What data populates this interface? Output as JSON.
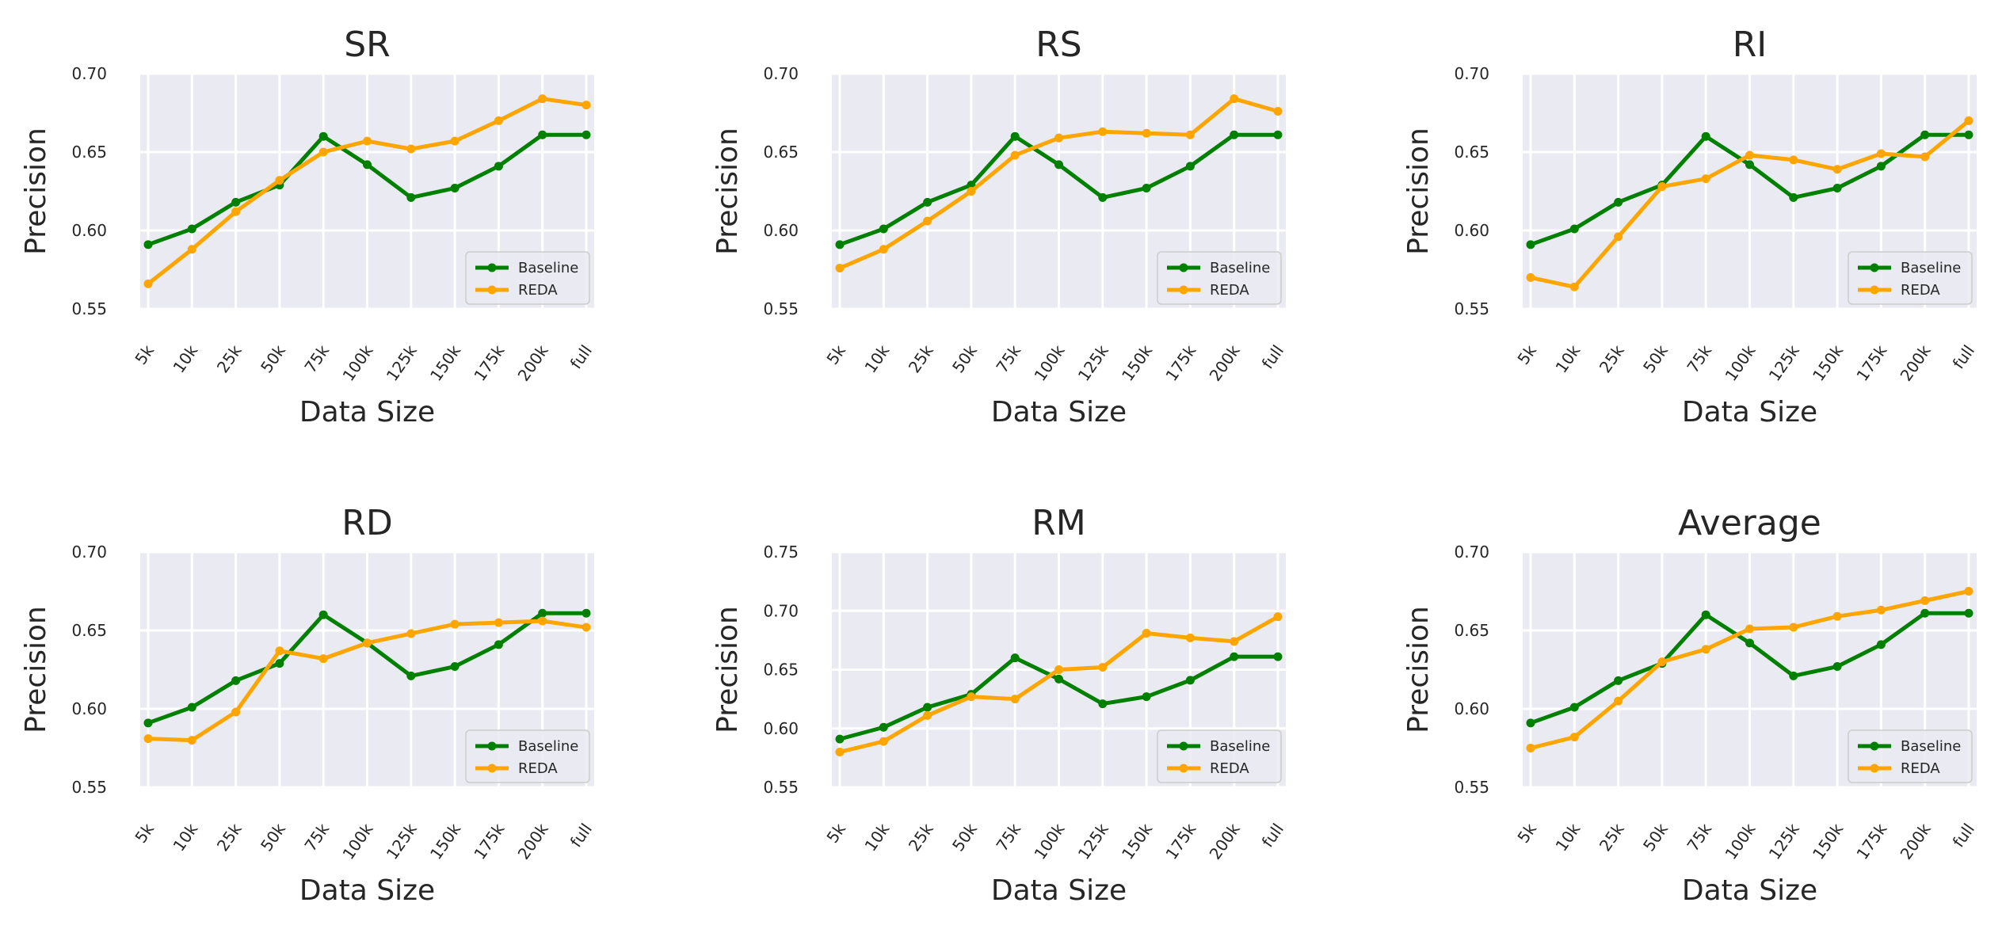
{
  "chart_data": [
    {
      "type": "line",
      "title": "SR",
      "xlabel": "Data Size",
      "ylabel": "Precision",
      "categories": [
        "5k",
        "10k",
        "25k",
        "50k",
        "75k",
        "100k",
        "125k",
        "150k",
        "175k",
        "200k",
        "full"
      ],
      "ylim": [
        0.55,
        0.7
      ],
      "yticks": [
        "0.55",
        "0.60",
        "0.65",
        "0.70"
      ],
      "grid": true,
      "legend": "lower-right",
      "series": [
        {
          "name": "Baseline",
          "color": "#008000",
          "values": [
            0.591,
            0.601,
            0.618,
            0.629,
            0.66,
            0.642,
            0.621,
            0.627,
            0.641,
            0.661,
            0.661
          ]
        },
        {
          "name": "REDA",
          "color": "#ffa500",
          "values": [
            0.566,
            0.588,
            0.612,
            0.632,
            0.65,
            0.657,
            0.652,
            0.657,
            0.67,
            0.684,
            0.68
          ]
        }
      ]
    },
    {
      "type": "line",
      "title": "RS",
      "xlabel": "Data Size",
      "ylabel": "Precision",
      "categories": [
        "5k",
        "10k",
        "25k",
        "50k",
        "75k",
        "100k",
        "125k",
        "150k",
        "175k",
        "200k",
        "full"
      ],
      "ylim": [
        0.55,
        0.7
      ],
      "yticks": [
        "0.55",
        "0.60",
        "0.65",
        "0.70"
      ],
      "grid": true,
      "legend": "lower-right",
      "series": [
        {
          "name": "Baseline",
          "color": "#008000",
          "values": [
            0.591,
            0.601,
            0.618,
            0.629,
            0.66,
            0.642,
            0.621,
            0.627,
            0.641,
            0.661,
            0.661
          ]
        },
        {
          "name": "REDA",
          "color": "#ffa500",
          "values": [
            0.576,
            0.588,
            0.606,
            0.625,
            0.648,
            0.659,
            0.663,
            0.662,
            0.661,
            0.684,
            0.676
          ]
        }
      ]
    },
    {
      "type": "line",
      "title": "RI",
      "xlabel": "Data Size",
      "ylabel": "Precision",
      "categories": [
        "5k",
        "10k",
        "25k",
        "50k",
        "75k",
        "100k",
        "125k",
        "150k",
        "175k",
        "200k",
        "full"
      ],
      "ylim": [
        0.55,
        0.7
      ],
      "yticks": [
        "0.55",
        "0.60",
        "0.65",
        "0.70"
      ],
      "grid": true,
      "legend": "lower-right",
      "series": [
        {
          "name": "Baseline",
          "color": "#008000",
          "values": [
            0.591,
            0.601,
            0.618,
            0.629,
            0.66,
            0.642,
            0.621,
            0.627,
            0.641,
            0.661,
            0.661
          ]
        },
        {
          "name": "REDA",
          "color": "#ffa500",
          "values": [
            0.57,
            0.564,
            0.596,
            0.628,
            0.633,
            0.648,
            0.645,
            0.639,
            0.649,
            0.647,
            0.67
          ]
        }
      ]
    },
    {
      "type": "line",
      "title": "RD",
      "xlabel": "Data Size",
      "ylabel": "Precision",
      "categories": [
        "5k",
        "10k",
        "25k",
        "50k",
        "75k",
        "100k",
        "125k",
        "150k",
        "175k",
        "200k",
        "full"
      ],
      "ylim": [
        0.55,
        0.7
      ],
      "yticks": [
        "0.55",
        "0.60",
        "0.65",
        "0.70"
      ],
      "grid": true,
      "legend": "lower-right",
      "series": [
        {
          "name": "Baseline",
          "color": "#008000",
          "values": [
            0.591,
            0.601,
            0.618,
            0.629,
            0.66,
            0.642,
            0.621,
            0.627,
            0.641,
            0.661,
            0.661
          ]
        },
        {
          "name": "REDA",
          "color": "#ffa500",
          "values": [
            0.581,
            0.58,
            0.598,
            0.637,
            0.632,
            0.642,
            0.648,
            0.654,
            0.655,
            0.656,
            0.652
          ]
        }
      ]
    },
    {
      "type": "line",
      "title": "RM",
      "xlabel": "Data Size",
      "ylabel": "Precision",
      "categories": [
        "5k",
        "10k",
        "25k",
        "50k",
        "75k",
        "100k",
        "125k",
        "150k",
        "175k",
        "200k",
        "full"
      ],
      "ylim": [
        0.55,
        0.75
      ],
      "yticks": [
        "0.55",
        "0.60",
        "0.65",
        "0.70",
        "0.75"
      ],
      "grid": true,
      "legend": "lower-right",
      "series": [
        {
          "name": "Baseline",
          "color": "#008000",
          "values": [
            0.591,
            0.601,
            0.618,
            0.629,
            0.66,
            0.642,
            0.621,
            0.627,
            0.641,
            0.661,
            0.661
          ]
        },
        {
          "name": "REDA",
          "color": "#ffa500",
          "values": [
            0.58,
            0.589,
            0.611,
            0.627,
            0.625,
            0.65,
            0.652,
            0.681,
            0.677,
            0.674,
            0.695
          ]
        }
      ]
    },
    {
      "type": "line",
      "title": "Average",
      "xlabel": "Data Size",
      "ylabel": "Precision",
      "categories": [
        "5k",
        "10k",
        "25k",
        "50k",
        "75k",
        "100k",
        "125k",
        "150k",
        "175k",
        "200k",
        "full"
      ],
      "ylim": [
        0.55,
        0.7
      ],
      "yticks": [
        "0.55",
        "0.60",
        "0.65",
        "0.70"
      ],
      "grid": true,
      "legend": "lower-right",
      "series": [
        {
          "name": "Baseline",
          "color": "#008000",
          "values": [
            0.591,
            0.601,
            0.618,
            0.629,
            0.66,
            0.642,
            0.621,
            0.627,
            0.641,
            0.661,
            0.661
          ]
        },
        {
          "name": "REDA",
          "color": "#ffa500",
          "values": [
            0.575,
            0.582,
            0.605,
            0.63,
            0.638,
            0.651,
            0.652,
            0.659,
            0.663,
            0.669,
            0.675
          ]
        }
      ]
    }
  ]
}
